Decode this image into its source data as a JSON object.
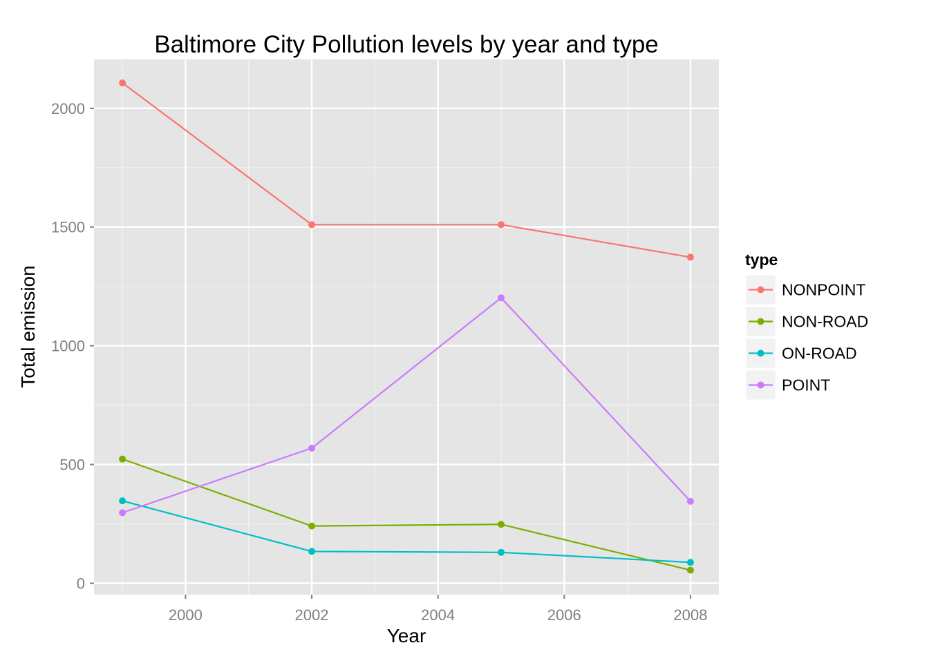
{
  "chart_data": {
    "type": "line",
    "title": "Baltimore City Pollution levels by year and type",
    "xlabel": "Year",
    "ylabel": "Total emission",
    "x": [
      1999,
      2002,
      2005,
      2008
    ],
    "xlim": [
      1998.55,
      2008.45
    ],
    "ylim": [
      -48,
      2206
    ],
    "xticks": [
      2000,
      2002,
      2004,
      2006,
      2008
    ],
    "yticks": [
      0,
      500,
      1000,
      1500,
      2000
    ],
    "grid": true,
    "legend": {
      "title": "type",
      "position": "right"
    },
    "series": [
      {
        "name": "NONPOINT",
        "color": "#F8766D",
        "values": [
          2107,
          1510,
          1510,
          1373
        ]
      },
      {
        "name": "NON-ROAD",
        "color": "#7CAE00",
        "values": [
          523,
          241,
          248,
          55
        ]
      },
      {
        "name": "ON-ROAD",
        "color": "#00BFC4",
        "values": [
          347,
          134,
          130,
          88
        ]
      },
      {
        "name": "POINT",
        "color": "#C77CFF",
        "values": [
          297,
          569,
          1202,
          345
        ]
      }
    ]
  }
}
